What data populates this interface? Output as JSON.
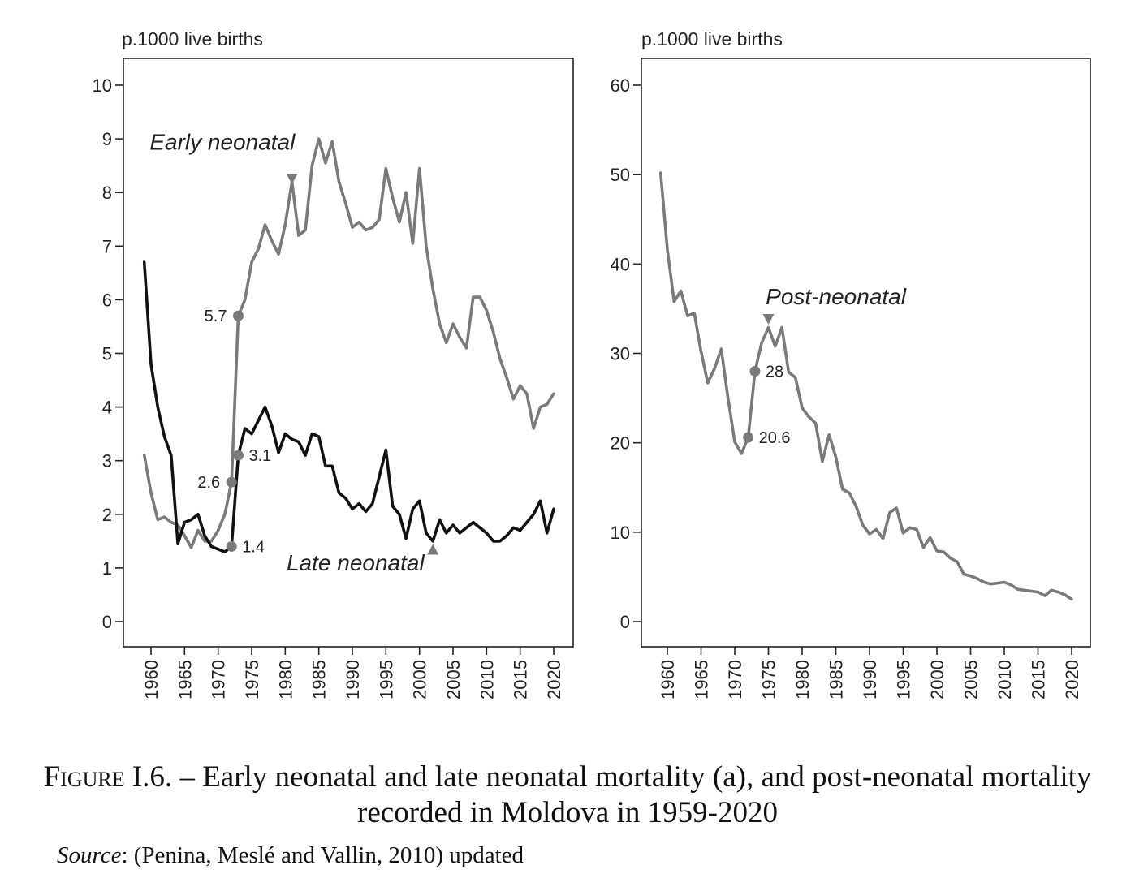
{
  "caption": {
    "figure_label": "Figure I.6.",
    "text": " – Early neonatal and late neonatal mortality (a), and post-neonatal mortality recorded in Moldova in 1959-2020"
  },
  "source": {
    "label": "Source",
    "text": ": (Penina, Meslé and Vallin, 2010) updated"
  },
  "colors": {
    "gray_series": "#7a7a7a",
    "black_series": "#111111",
    "axis": "#222222"
  },
  "chart_data": [
    {
      "type": "line",
      "id": "left",
      "unit_label": "p.1000 live births",
      "ylim": [
        0,
        10
      ],
      "yticks": [
        0,
        1,
        2,
        3,
        4,
        5,
        6,
        7,
        8,
        9,
        10
      ],
      "xlim": [
        1958,
        2021
      ],
      "xticks": [
        1960,
        1965,
        1970,
        1975,
        1980,
        1985,
        1990,
        1995,
        2000,
        2005,
        2010,
        2015,
        2020
      ],
      "series": [
        {
          "name": "Early neonatal",
          "color": "#7a7a7a",
          "x": [
            1959,
            1960,
            1961,
            1962,
            1963,
            1964,
            1965,
            1966,
            1967,
            1968,
            1969,
            1970,
            1971,
            1972,
            1973,
            1974,
            1975,
            1976,
            1977,
            1978,
            1979,
            1980,
            1981,
            1982,
            1983,
            1984,
            1985,
            1986,
            1987,
            1988,
            1989,
            1990,
            1991,
            1992,
            1993,
            1994,
            1995,
            1996,
            1997,
            1998,
            1999,
            2000,
            2001,
            2002,
            2003,
            2004,
            2005,
            2006,
            2007,
            2008,
            2009,
            2010,
            2011,
            2012,
            2013,
            2014,
            2015,
            2016,
            2017,
            2018,
            2019,
            2020
          ],
          "values": [
            3.1,
            2.4,
            1.9,
            1.95,
            1.85,
            1.8,
            1.6,
            1.38,
            1.7,
            1.5,
            1.5,
            1.7,
            2.0,
            2.6,
            5.7,
            6.0,
            6.7,
            6.95,
            7.4,
            7.1,
            6.85,
            7.4,
            8.2,
            7.2,
            7.3,
            8.5,
            9.0,
            8.55,
            8.95,
            8.2,
            7.8,
            7.35,
            7.45,
            7.3,
            7.35,
            7.5,
            8.45,
            7.9,
            7.45,
            8.0,
            7.05,
            8.45,
            7.0,
            6.2,
            5.55,
            5.2,
            5.55,
            5.3,
            5.1,
            6.05,
            6.05,
            5.8,
            5.4,
            4.9,
            4.55,
            4.15,
            4.4,
            4.25,
            3.6,
            4.0,
            4.05,
            4.25
          ]
        },
        {
          "name": "Late neonatal",
          "color": "#111111",
          "x": [
            1959,
            1960,
            1961,
            1962,
            1963,
            1964,
            1965,
            1966,
            1967,
            1968,
            1969,
            1970,
            1971,
            1972,
            1973,
            1974,
            1975,
            1976,
            1977,
            1978,
            1979,
            1980,
            1981,
            1982,
            1983,
            1984,
            1985,
            1986,
            1987,
            1988,
            1989,
            1990,
            1991,
            1992,
            1993,
            1994,
            1995,
            1996,
            1997,
            1998,
            1999,
            2000,
            2001,
            2002,
            2003,
            2004,
            2005,
            2006,
            2007,
            2008,
            2009,
            2010,
            2011,
            2012,
            2013,
            2014,
            2015,
            2016,
            2017,
            2018,
            2019,
            2020
          ],
          "values": [
            6.7,
            4.8,
            4.0,
            3.45,
            3.1,
            1.45,
            1.85,
            1.9,
            2.0,
            1.6,
            1.4,
            1.35,
            1.3,
            1.4,
            3.1,
            3.6,
            3.5,
            3.75,
            4.0,
            3.65,
            3.15,
            3.5,
            3.4,
            3.35,
            3.1,
            3.5,
            3.45,
            2.9,
            2.9,
            2.4,
            2.3,
            2.1,
            2.2,
            2.05,
            2.2,
            2.7,
            3.2,
            2.15,
            2.0,
            1.55,
            2.1,
            2.25,
            1.65,
            1.5,
            1.9,
            1.65,
            1.8,
            1.65,
            1.75,
            1.85,
            1.75,
            1.65,
            1.5,
            1.5,
            1.6,
            1.75,
            1.7,
            1.85,
            2.0,
            2.25,
            1.65,
            2.1
          ]
        }
      ],
      "annotations": [
        {
          "text": "5.7",
          "x": 1973,
          "y": 5.7,
          "side": "left"
        },
        {
          "text": "3.1",
          "x": 1973,
          "y": 3.1,
          "side": "right"
        },
        {
          "text": "2.6",
          "x": 1972,
          "y": 2.6,
          "side": "left"
        },
        {
          "text": "1.4",
          "x": 1972,
          "y": 1.4,
          "side": "right"
        }
      ],
      "markers": [
        {
          "shape": "triangle-down",
          "x": 1981,
          "y": 8.2
        },
        {
          "shape": "triangle-up",
          "x": 2002,
          "y": 1.4
        }
      ],
      "series_labels": [
        {
          "text": "Early neonatal",
          "x": 1959.8,
          "y": 8.8
        },
        {
          "text": "Late neonatal",
          "x": 1980.2,
          "y": 0.95
        }
      ]
    },
    {
      "type": "line",
      "id": "right",
      "unit_label": "p.1000 live births",
      "ylim": [
        -3,
        63
      ],
      "yticks": [
        0,
        10,
        20,
        30,
        40,
        50,
        60
      ],
      "xlim": [
        1956,
        2023
      ],
      "xticks": [
        1960,
        1965,
        1970,
        1975,
        1980,
        1985,
        1990,
        1995,
        2000,
        2005,
        2010,
        2015,
        2020
      ],
      "series": [
        {
          "name": "Post-neonatal",
          "color": "#7a7a7a",
          "x": [
            1959,
            1960,
            1961,
            1962,
            1963,
            1964,
            1965,
            1966,
            1967,
            1968,
            1969,
            1970,
            1971,
            1972,
            1973,
            1974,
            1975,
            1976,
            1977,
            1978,
            1979,
            1980,
            1981,
            1982,
            1983,
            1984,
            1985,
            1986,
            1987,
            1988,
            1989,
            1990,
            1991,
            1992,
            1993,
            1994,
            1995,
            1996,
            1997,
            1998,
            1999,
            2000,
            2001,
            2002,
            2003,
            2004,
            2005,
            2006,
            2007,
            2008,
            2009,
            2010,
            2011,
            2012,
            2013,
            2014,
            2015,
            2016,
            2017,
            2018,
            2019,
            2020
          ],
          "values": [
            50.2,
            41.6,
            35.8,
            37.0,
            34.2,
            34.5,
            30.2,
            26.7,
            28.3,
            30.5,
            25.0,
            20.1,
            18.8,
            20.6,
            28.0,
            31.2,
            32.9,
            30.8,
            32.9,
            27.9,
            27.3,
            23.9,
            22.9,
            22.2,
            17.9,
            20.9,
            18.4,
            14.8,
            14.4,
            12.9,
            10.8,
            9.8,
            10.3,
            9.3,
            12.2,
            12.7,
            9.9,
            10.5,
            10.3,
            8.3,
            9.4,
            7.9,
            7.8,
            7.1,
            6.7,
            5.3,
            5.1,
            4.8,
            4.4,
            4.2,
            4.3,
            4.4,
            4.1,
            3.6,
            3.5,
            3.4,
            3.3,
            2.9,
            3.5,
            3.3,
            3.0,
            2.5
          ]
        }
      ],
      "annotations": [
        {
          "text": "28",
          "x": 1973,
          "y": 28,
          "side": "right"
        },
        {
          "text": "20.6",
          "x": 1972,
          "y": 20.6,
          "side": "right"
        }
      ],
      "markers": [
        {
          "shape": "triangle-down",
          "x": 1975,
          "y": 33.5
        }
      ],
      "series_labels": [
        {
          "text": "Post-neonatal",
          "x": 1974.6,
          "y": 35.5
        }
      ]
    }
  ]
}
